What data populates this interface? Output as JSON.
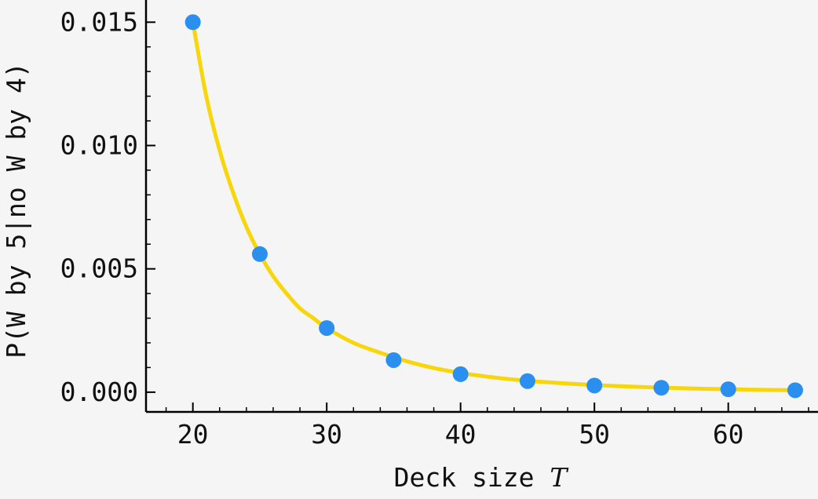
{
  "chart_data": {
    "type": "scatter",
    "title": "",
    "xlabel": "Deck size",
    "xlabel_var": "T",
    "ylabel": "P(W by 5|no W by 4)",
    "xlim": [
      16.5,
      66
    ],
    "ylim": [
      -0.0008,
      0.0159
    ],
    "x_ticks": [
      20,
      30,
      40,
      50,
      60
    ],
    "x_tick_labels": [
      "20",
      "30",
      "40",
      "50",
      "60"
    ],
    "x_minor_step": 2,
    "y_ticks": [
      0.0,
      0.005,
      0.01,
      0.015
    ],
    "y_tick_labels": [
      "0.000",
      "0.005",
      "0.010",
      "0.015"
    ],
    "y_minor_step": 0.001,
    "grid": false,
    "legend": "none",
    "series": [
      {
        "kind": "points",
        "x": [
          20,
          25,
          30,
          35,
          40,
          45,
          50,
          55,
          60,
          65
        ],
        "y": [
          0.015,
          0.0056,
          0.0026,
          0.0013,
          0.00073,
          0.00045,
          0.00027,
          0.00018,
          0.00012,
          8e-05
        ]
      },
      {
        "kind": "curve",
        "x": [
          20,
          21,
          22,
          23,
          24,
          25,
          26,
          27,
          28,
          29,
          30,
          32,
          34,
          36,
          38,
          40,
          42,
          44,
          46,
          48,
          50,
          52,
          54,
          56,
          58,
          60,
          62,
          65
        ],
        "y": [
          0.015,
          0.012,
          0.0098,
          0.0081,
          0.0067,
          0.0056,
          0.0047,
          0.004,
          0.0034,
          0.003,
          0.0026,
          0.002,
          0.0016,
          0.00125,
          0.00098,
          0.00078,
          0.00063,
          0.00051,
          0.00042,
          0.00035,
          0.00029,
          0.00024,
          0.0002,
          0.00017,
          0.00014,
          0.00012,
          0.0001,
          8e-05
        ]
      }
    ],
    "colors": {
      "points": "#2a8fef",
      "curve": "#f8d60c",
      "axis": "#000000",
      "background": "#f5f5f5"
    }
  }
}
